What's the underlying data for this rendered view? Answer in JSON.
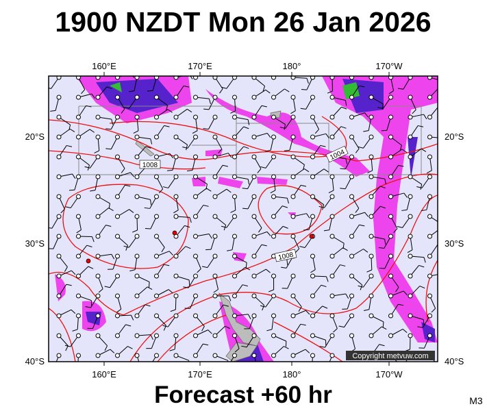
{
  "header": {
    "title": "1900 NZDT Mon 26 Jan 2026"
  },
  "map": {
    "lon_labels": [
      "160°E",
      "170°E",
      "180°",
      "170°W"
    ],
    "lat_labels": [
      "20°S",
      "30°S",
      "40°S"
    ],
    "isobar_labels": [
      "1008",
      "1004",
      "1008"
    ],
    "copyright": "Copyright metvuw.com"
  },
  "footer": {
    "forecast": "Forecast +60 hr",
    "code": "M3"
  }
}
